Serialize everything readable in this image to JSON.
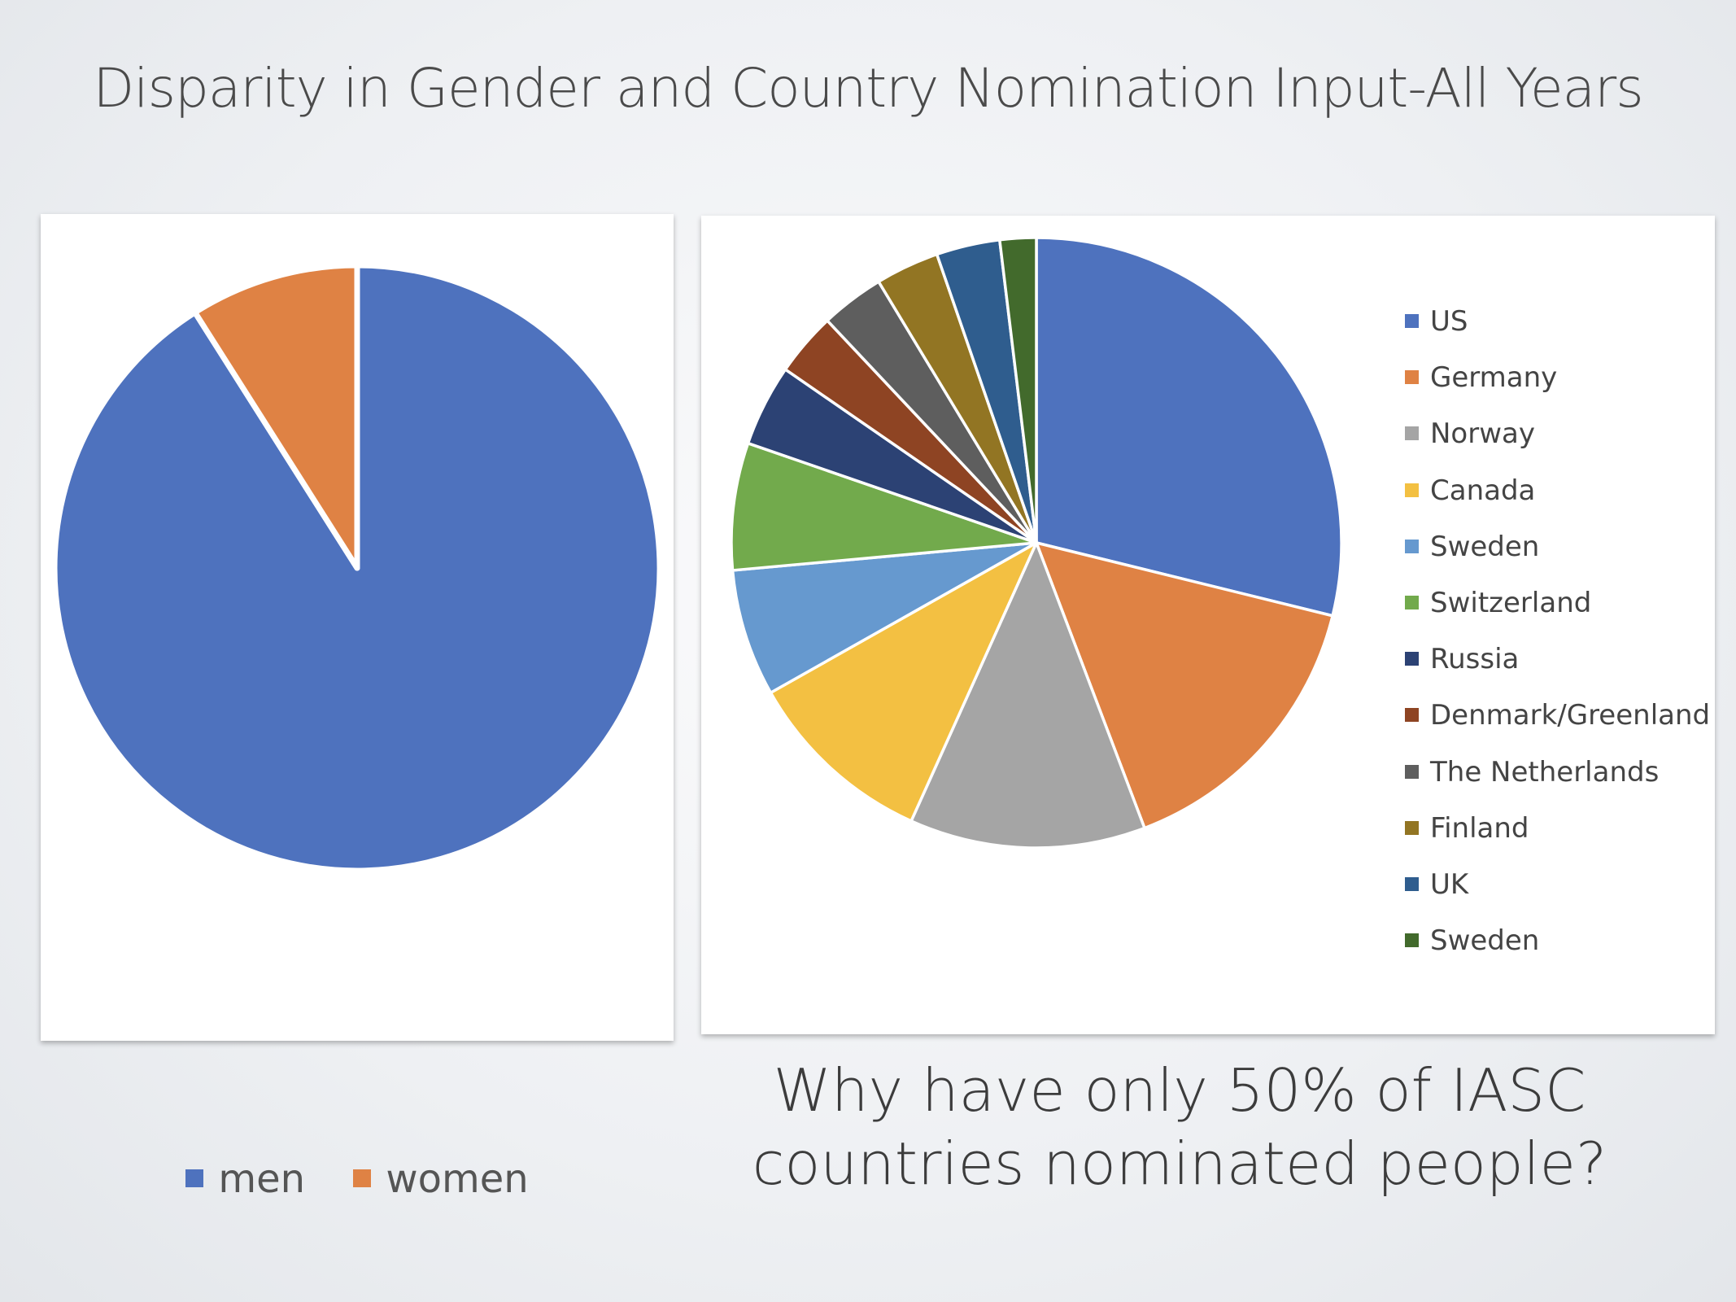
{
  "slide": {
    "title": "Disparity in Gender and Country Nomination Input-All Years",
    "question_line1": "Why have only 50% of  IASC",
    "question_line2": "countries nominated people?"
  },
  "chart_data": [
    {
      "type": "pie",
      "title": "",
      "categories": [
        "men",
        "women"
      ],
      "values": [
        91,
        9
      ],
      "colors": [
        "#4e72be",
        "#df8244"
      ],
      "legend_position": "bottom"
    },
    {
      "type": "pie",
      "title": "",
      "categories": [
        "US",
        "Germany",
        "Norway",
        "Canada",
        "Sweden",
        "Switzerland",
        "Russia",
        "Denmark/Greenland",
        "The Netherlands",
        "Finland",
        "UK",
        "Sweden"
      ],
      "values": [
        30,
        16,
        13,
        10.5,
        7,
        7,
        4.5,
        3.5,
        3.5,
        3.5,
        3.5,
        2
      ],
      "colors": [
        "#4e72be",
        "#df8244",
        "#a5a5a5",
        "#f3c042",
        "#6699cf",
        "#72aa4c",
        "#2c4274",
        "#8e4423",
        "#5e5e5e",
        "#927523",
        "#2f5d8e",
        "#426a2c"
      ],
      "legend_position": "right"
    }
  ]
}
